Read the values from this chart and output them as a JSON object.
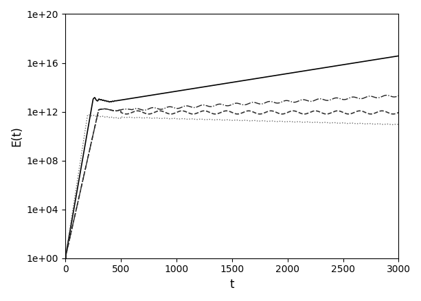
{
  "title": "",
  "xlabel": "t",
  "ylabel": "E(t)",
  "xlim": [
    0,
    3000
  ],
  "ylim_log": [
    0,
    20
  ],
  "background_color": "#ffffff",
  "line_color": "#000000",
  "line_color_light": "#888888",
  "seed": 42
}
